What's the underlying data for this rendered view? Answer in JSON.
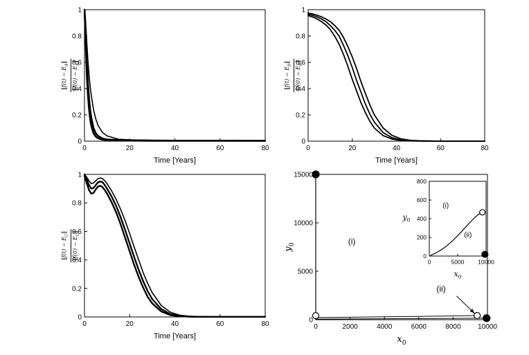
{
  "figure": {
    "background": "#ffffff",
    "line_color": "#000000"
  },
  "chart_data": [
    {
      "id": "top-left-decay",
      "type": "line",
      "title": "",
      "xlabel": "Time [Years]",
      "ylabel_parts": {
        "num_pre": "‖f(t) − E",
        "den_pre": "‖f(0) − E",
        "sub": "A",
        "post": "‖"
      },
      "xlim": [
        0,
        80
      ],
      "ylim": [
        0,
        1
      ],
      "xticks": [
        0,
        20,
        40,
        60,
        80
      ],
      "xticklabels": [
        "0",
        "20",
        "40",
        "60",
        "80"
      ],
      "yticks": [
        0,
        0.2,
        0.4,
        0.6,
        0.8,
        1
      ],
      "yticklabels": [
        "0",
        "0.2",
        "0.4",
        "0.6",
        "0.8",
        "1"
      ],
      "series": [
        {
          "name": "fast-1",
          "linewidth": 2.6,
          "x": [
            0,
            0.3,
            0.6,
            1,
            1.5,
            2,
            2.5,
            3,
            4,
            5,
            6,
            8,
            10,
            15,
            20,
            30,
            40,
            60,
            80
          ],
          "y": [
            1,
            0.92,
            0.8,
            0.62,
            0.45,
            0.33,
            0.24,
            0.18,
            0.1,
            0.06,
            0.04,
            0.02,
            0.013,
            0.008,
            0.006,
            0.005,
            0.004,
            0.004,
            0.003
          ]
        },
        {
          "name": "fast-2",
          "linewidth": 2.6,
          "x": [
            0,
            0.3,
            0.6,
            1,
            1.5,
            2,
            2.5,
            3,
            4,
            5,
            6,
            8,
            10,
            15,
            20,
            30,
            40,
            60,
            80
          ],
          "y": [
            1,
            0.88,
            0.72,
            0.52,
            0.36,
            0.25,
            0.17,
            0.12,
            0.06,
            0.035,
            0.022,
            0.012,
            0.008,
            0.005,
            0.004,
            0.003,
            0.003,
            0.003,
            0.003
          ]
        },
        {
          "name": "slow",
          "linewidth": 1.6,
          "x": [
            0,
            0.3,
            0.6,
            1,
            1.5,
            2,
            2.5,
            3,
            4,
            5,
            6,
            8,
            10,
            15,
            20,
            30,
            40,
            60,
            80
          ],
          "y": [
            1,
            0.95,
            0.88,
            0.76,
            0.62,
            0.51,
            0.42,
            0.35,
            0.24,
            0.17,
            0.12,
            0.065,
            0.04,
            0.015,
            0.01,
            0.006,
            0.005,
            0.004,
            0.004
          ]
        }
      ]
    },
    {
      "id": "top-right-decay",
      "type": "line",
      "title": "",
      "xlabel": "Time [Years]",
      "ylabel_parts": {
        "num_pre": "‖f(t) − E",
        "den_pre": "‖f(0) − E",
        "sub": "B",
        "post": "‖"
      },
      "xlim": [
        0,
        80
      ],
      "ylim": [
        0,
        1
      ],
      "xticks": [
        0,
        20,
        40,
        60,
        80
      ],
      "xticklabels": [
        "0",
        "20",
        "40",
        "60",
        "80"
      ],
      "yticks": [
        0,
        0.2,
        0.4,
        0.6,
        0.8,
        1
      ],
      "yticklabels": [
        "0",
        "0.2",
        "0.4",
        "0.6",
        "0.8",
        "1"
      ],
      "series": [
        {
          "name": "sigmoid-left",
          "linewidth": 1.8,
          "x": [
            0,
            2,
            4,
            6,
            8,
            10,
            12,
            14,
            16,
            18,
            20,
            22,
            24,
            26,
            28,
            30,
            34,
            38,
            42,
            46,
            50,
            55,
            60,
            70,
            80
          ],
          "y": [
            0.955,
            0.945,
            0.93,
            0.91,
            0.885,
            0.85,
            0.8,
            0.74,
            0.66,
            0.57,
            0.47,
            0.38,
            0.29,
            0.215,
            0.15,
            0.1,
            0.042,
            0.016,
            0.006,
            0.002,
            0.001,
            0.001,
            0,
            0,
            0
          ]
        },
        {
          "name": "sigmoid-mid",
          "linewidth": 1.8,
          "x": [
            0,
            2,
            4,
            6,
            8,
            10,
            12,
            14,
            16,
            18,
            20,
            22,
            24,
            26,
            28,
            30,
            34,
            38,
            42,
            46,
            50,
            55,
            60,
            70,
            80
          ],
          "y": [
            0.965,
            0.957,
            0.945,
            0.93,
            0.91,
            0.88,
            0.845,
            0.8,
            0.73,
            0.65,
            0.56,
            0.46,
            0.37,
            0.28,
            0.205,
            0.145,
            0.065,
            0.026,
            0.01,
            0.004,
            0.001,
            0.001,
            0,
            0,
            0
          ]
        },
        {
          "name": "sigmoid-right",
          "linewidth": 1.8,
          "x": [
            0,
            2,
            4,
            6,
            8,
            10,
            12,
            14,
            16,
            18,
            20,
            22,
            24,
            26,
            28,
            30,
            34,
            38,
            42,
            46,
            50,
            55,
            60,
            70,
            80
          ],
          "y": [
            0.975,
            0.968,
            0.958,
            0.946,
            0.93,
            0.91,
            0.88,
            0.845,
            0.79,
            0.72,
            0.64,
            0.55,
            0.45,
            0.36,
            0.275,
            0.2,
            0.1,
            0.044,
            0.018,
            0.007,
            0.003,
            0.001,
            0,
            0,
            0
          ]
        }
      ]
    },
    {
      "id": "bottom-left-decay",
      "type": "line",
      "title": "",
      "xlabel": "Time [Years]",
      "ylabel_parts": {
        "num_pre": "‖f(t) − E",
        "den_pre": "‖f(0) − E",
        "sub": "C",
        "post": "‖"
      },
      "xlim": [
        0,
        80
      ],
      "ylim": [
        0,
        1
      ],
      "xticks": [
        0,
        20,
        40,
        60,
        80
      ],
      "xticklabels": [
        "0",
        "20",
        "40",
        "60",
        "80"
      ],
      "yticks": [
        0,
        0.2,
        0.4,
        0.6,
        0.8,
        1
      ],
      "yticklabels": [
        "0",
        "0.2",
        "0.4",
        "0.6",
        "0.8",
        "1"
      ],
      "series": [
        {
          "name": "band-upper",
          "linewidth": 2.4,
          "x": [
            0,
            1,
            2,
            3,
            4,
            5,
            6,
            7,
            8,
            9,
            10,
            12,
            14,
            16,
            18,
            20,
            22,
            24,
            26,
            28,
            30,
            34,
            38,
            42,
            46,
            50,
            60,
            70,
            80
          ],
          "y": [
            1,
            0.965,
            0.925,
            0.9,
            0.905,
            0.925,
            0.945,
            0.95,
            0.945,
            0.925,
            0.9,
            0.845,
            0.78,
            0.7,
            0.61,
            0.515,
            0.42,
            0.33,
            0.25,
            0.18,
            0.125,
            0.055,
            0.02,
            0.008,
            0.003,
            0.001,
            0,
            0,
            0
          ]
        },
        {
          "name": "band-lower",
          "linewidth": 2.4,
          "x": [
            0,
            1,
            2,
            3,
            4,
            5,
            6,
            7,
            8,
            9,
            10,
            12,
            14,
            16,
            18,
            20,
            22,
            24,
            26,
            28,
            30,
            34,
            38,
            42,
            46,
            50,
            60,
            70,
            80
          ],
          "y": [
            0.99,
            0.94,
            0.89,
            0.865,
            0.87,
            0.895,
            0.915,
            0.92,
            0.91,
            0.89,
            0.865,
            0.805,
            0.735,
            0.65,
            0.555,
            0.46,
            0.365,
            0.28,
            0.205,
            0.14,
            0.095,
            0.038,
            0.013,
            0.005,
            0.002,
            0.001,
            0,
            0,
            0
          ]
        },
        {
          "name": "slow-tail",
          "linewidth": 1.6,
          "x": [
            0,
            1,
            2,
            3,
            4,
            5,
            6,
            7,
            8,
            9,
            10,
            12,
            14,
            16,
            18,
            20,
            22,
            24,
            26,
            28,
            30,
            34,
            38,
            42,
            46,
            50,
            60,
            70,
            80
          ],
          "y": [
            1,
            0.98,
            0.955,
            0.935,
            0.94,
            0.955,
            0.97,
            0.975,
            0.97,
            0.955,
            0.935,
            0.885,
            0.825,
            0.755,
            0.675,
            0.585,
            0.49,
            0.4,
            0.31,
            0.235,
            0.17,
            0.08,
            0.033,
            0.013,
            0.005,
            0.002,
            0.001,
            0,
            0
          ]
        }
      ]
    },
    {
      "id": "phase-plane",
      "type": "scatter",
      "title": "",
      "xlabel_main": "x",
      "xlabel_sub": "0",
      "ylabel_main": "y",
      "ylabel_sub": "0",
      "xlim": [
        0,
        10000
      ],
      "ylim": [
        0,
        15000
      ],
      "xticks": [
        0,
        2000,
        4000,
        6000,
        8000,
        10000
      ],
      "xticklabels": [
        "0",
        "2000",
        "4000",
        "6000",
        "8000",
        "10000"
      ],
      "yticks": [
        0,
        5000,
        10000,
        15000
      ],
      "yticklabels": [
        "0",
        "5000",
        "10000",
        "15000"
      ],
      "series": [
        {
          "name": "vertical-separatrix",
          "linewidth": 1.2,
          "x": [
            0,
            0
          ],
          "y": [
            0,
            15000
          ]
        },
        {
          "name": "trajectory-ii-upper",
          "linewidth": 1,
          "x": [
            0,
            2000,
            4000,
            6000,
            8000,
            9400
          ],
          "y": [
            220,
            260,
            300,
            340,
            390,
            430
          ]
        },
        {
          "name": "trajectory-ii-lower",
          "linewidth": 1,
          "x": [
            0,
            2000,
            4000,
            6000,
            8000,
            9950
          ],
          "y": [
            60,
            80,
            100,
            115,
            135,
            160
          ]
        }
      ],
      "markers": [
        {
          "x": 0,
          "y": 15000,
          "filled": true,
          "r": 5
        },
        {
          "x": 0,
          "y": 420,
          "filled": false,
          "r": 4.5
        },
        {
          "x": 9400,
          "y": 430,
          "filled": false,
          "r": 4.5
        },
        {
          "x": 9950,
          "y": 160,
          "filled": true,
          "r": 5
        }
      ],
      "annotations": [
        {
          "x": 2100,
          "y": 7800,
          "text": "(i)"
        },
        {
          "x": 7300,
          "y": 2900,
          "text": "(ii)"
        }
      ],
      "arrows": [
        {
          "x1": 8200,
          "y1": 2450,
          "x2": 9250,
          "y2": 650
        }
      ]
    },
    {
      "id": "phase-plane-inset",
      "type": "scatter",
      "title": "",
      "xlabel_main": "x",
      "xlabel_sub": "0",
      "ylabel_main": "y",
      "ylabel_sub": "0",
      "xlim": [
        0,
        10000
      ],
      "ylim": [
        0,
        800
      ],
      "xticks": [
        0,
        5000,
        10000
      ],
      "xticklabels": [
        "0",
        "5000",
        "10000"
      ],
      "yticks": [
        0,
        200,
        400,
        600,
        800
      ],
      "yticklabels": [
        "0",
        "200",
        "400",
        "600",
        "800"
      ],
      "series": [
        {
          "name": "trajectory-i-curve",
          "linewidth": 1.2,
          "x": [
            250,
            1000,
            2000,
            3000,
            4000,
            5000,
            6000,
            7000,
            8000,
            8700,
            9200
          ],
          "y": [
            8,
            28,
            62,
            105,
            158,
            218,
            283,
            350,
            412,
            448,
            462
          ]
        }
      ],
      "markers": [
        {
          "x": 9350,
          "y": 468,
          "filled": false,
          "r": 4
        },
        {
          "x": 9800,
          "y": 18,
          "filled": true,
          "r": 4.5
        }
      ],
      "annotations": [
        {
          "x": 2900,
          "y": 520,
          "text": "(i)"
        },
        {
          "x": 6800,
          "y": 205,
          "text": "(ii)"
        }
      ]
    }
  ]
}
